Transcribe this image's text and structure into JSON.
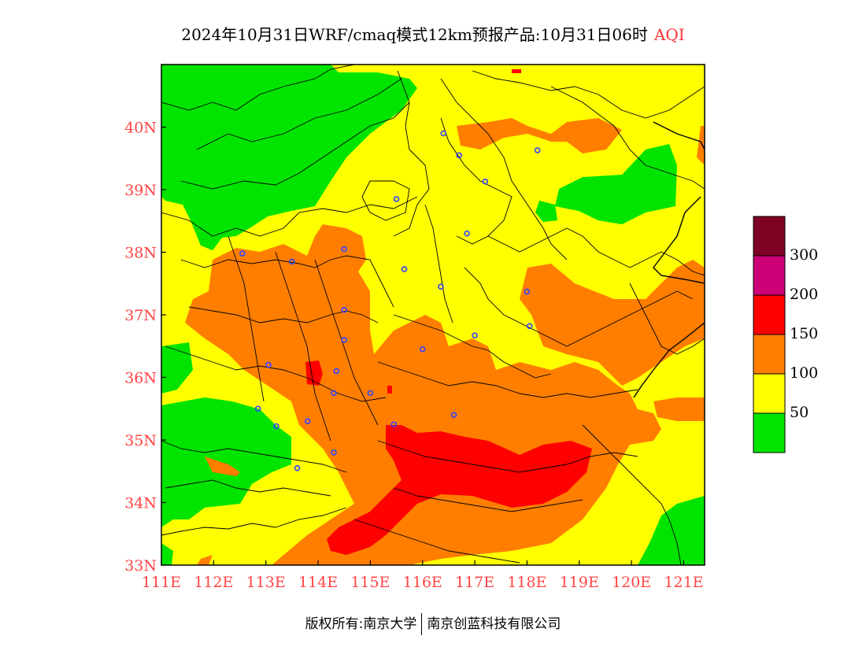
{
  "title": {
    "main": "2024年10月31日WRF/cmaq模式12km预报产品:10月31日06时",
    "product": "AQI"
  },
  "map": {
    "lon_ticks": [
      "111E",
      "112E",
      "113E",
      "114E",
      "115E",
      "116E",
      "117E",
      "118E",
      "119E",
      "120E",
      "121E"
    ],
    "lat_ticks": [
      "40N",
      "39N",
      "38N",
      "37N",
      "36N",
      "35N",
      "34N",
      "33N"
    ],
    "lon_range": [
      111,
      121.4
    ],
    "lat_range": [
      33,
      41
    ],
    "city_markers": [
      [
        116.4,
        39.9
      ],
      [
        116.7,
        39.55
      ],
      [
        117.2,
        39.13
      ],
      [
        118.2,
        39.63
      ],
      [
        115.5,
        38.85
      ],
      [
        116.85,
        38.3
      ],
      [
        112.55,
        37.98
      ],
      [
        113.5,
        37.85
      ],
      [
        114.5,
        38.05
      ],
      [
        115.65,
        37.73
      ],
      [
        116.35,
        37.45
      ],
      [
        118.0,
        37.37
      ],
      [
        118.05,
        36.82
      ],
      [
        117.0,
        36.67
      ],
      [
        116.0,
        36.45
      ],
      [
        114.5,
        37.08
      ],
      [
        114.5,
        36.6
      ],
      [
        113.05,
        36.2
      ],
      [
        114.35,
        36.1
      ],
      [
        114.3,
        35.75
      ],
      [
        115.0,
        35.75
      ],
      [
        115.45,
        35.25
      ],
      [
        116.6,
        35.4
      ],
      [
        112.85,
        35.5
      ],
      [
        113.2,
        35.22
      ],
      [
        113.8,
        35.3
      ],
      [
        114.3,
        34.8
      ],
      [
        113.6,
        34.55
      ]
    ]
  },
  "legend": {
    "colors": [
      "#00e400",
      "#ffff00",
      "#ff7e00",
      "#ff0000",
      "#cc0077",
      "#7e0023"
    ],
    "labels": [
      "50",
      "100",
      "150",
      "200",
      "300"
    ]
  },
  "footer": {
    "left": "版权所有:南京大学",
    "right": "南京创蓝科技有限公司"
  }
}
